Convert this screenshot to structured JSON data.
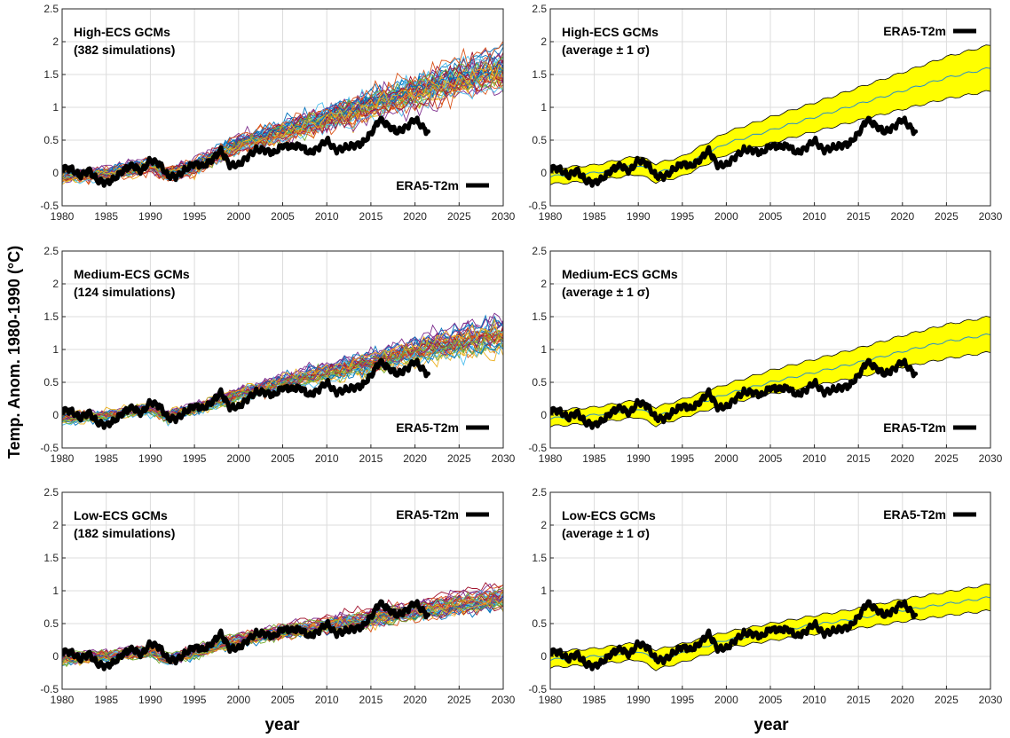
{
  "figure": {
    "ylabel": "Temp. Anom. 1980-1990 (°C)",
    "xlabel_left": "year",
    "xlabel_right": "year",
    "legend_label": "ERA5-T2m"
  },
  "colors": {
    "band": "#ffff00",
    "band_edge": "#000000",
    "mean": "#2a8fc9",
    "obs": "#000000",
    "grid": "#dcdcdc",
    "ensemble_palette": [
      "#0072bd",
      "#d95319",
      "#edb120",
      "#7e2f8e",
      "#77ac30",
      "#4dbeee",
      "#a2142f"
    ]
  },
  "chart_data": [
    {
      "type": "line",
      "panel": "high-ensemble",
      "title_line1": "High-ECS GCMs",
      "title_line2": "(382 simulations)",
      "legend_position": "bottom-right",
      "xlim": [
        1980,
        2030
      ],
      "ylim": [
        -0.5,
        2.5
      ],
      "xticks": [
        1980,
        1985,
        1990,
        1995,
        2000,
        2005,
        2010,
        2015,
        2020,
        2025,
        2030
      ],
      "yticks": [
        -0.5,
        0,
        0.5,
        1,
        1.5,
        2,
        2.5
      ],
      "ytick_labels": [
        "-0.5",
        "0",
        "0.5",
        "1",
        "1.5",
        "2",
        "2.5"
      ],
      "grid": true,
      "ensemble": {
        "n_drawn": 45,
        "mean_x": [
          1980,
          1985,
          1990,
          1992,
          1995,
          2000,
          2005,
          2010,
          2015,
          2020,
          2025,
          2030
        ],
        "mean_y": [
          -0.05,
          0.0,
          0.12,
          0.0,
          0.1,
          0.45,
          0.65,
          0.85,
          1.05,
          1.25,
          1.45,
          1.6
        ],
        "spread_x": [
          1980,
          2000,
          2030
        ],
        "spread_y": [
          0.13,
          0.18,
          0.35
        ]
      }
    },
    {
      "type": "area",
      "panel": "high-band",
      "title_line1": "High-ECS GCMs",
      "title_line2": "(average ± 1 σ)",
      "legend_position": "top-right",
      "xlim": [
        1980,
        2030
      ],
      "ylim": [
        -0.5,
        2.5
      ],
      "xticks": [
        1980,
        1985,
        1990,
        1995,
        2000,
        2005,
        2010,
        2015,
        2020,
        2025,
        2030
      ],
      "yticks": [
        -0.5,
        0,
        0.5,
        1,
        1.5,
        2,
        2.5
      ],
      "ytick_labels": [
        "-0.5",
        "0",
        "0.5",
        "1",
        "1.5",
        "2",
        "2.5"
      ],
      "grid": true,
      "band": {
        "x": [
          1980,
          1985,
          1990,
          1992,
          1995,
          2000,
          2005,
          2010,
          2015,
          2020,
          2025,
          2030
        ],
        "mean": [
          -0.05,
          0.0,
          0.12,
          0.0,
          0.1,
          0.45,
          0.65,
          0.85,
          1.05,
          1.25,
          1.45,
          1.6
        ],
        "sigma": [
          0.12,
          0.12,
          0.14,
          0.14,
          0.15,
          0.17,
          0.2,
          0.22,
          0.25,
          0.28,
          0.32,
          0.35
        ]
      }
    },
    {
      "type": "line",
      "panel": "medium-ensemble",
      "title_line1": "Medium-ECS GCMs",
      "title_line2": "(124 simulations)",
      "legend_position": "bottom-right",
      "xlim": [
        1980,
        2030
      ],
      "ylim": [
        -0.5,
        2.5
      ],
      "xticks": [
        1980,
        1985,
        1990,
        1995,
        2000,
        2005,
        2010,
        2015,
        2020,
        2025,
        2030
      ],
      "yticks": [
        -0.5,
        0,
        0.5,
        1,
        1.5,
        2,
        2.5
      ],
      "ytick_labels": [
        "-0.5",
        "0",
        "0.5",
        "1",
        "1.5",
        "2",
        "2.5"
      ],
      "grid": true,
      "ensemble": {
        "n_drawn": 40,
        "mean_x": [
          1980,
          1985,
          1990,
          1992,
          1995,
          2000,
          2005,
          2010,
          2015,
          2020,
          2025,
          2030
        ],
        "mean_y": [
          -0.05,
          0.0,
          0.1,
          -0.02,
          0.1,
          0.32,
          0.5,
          0.65,
          0.8,
          0.97,
          1.12,
          1.23
        ],
        "spread_x": [
          1980,
          2000,
          2030
        ],
        "spread_y": [
          0.12,
          0.15,
          0.28
        ]
      }
    },
    {
      "type": "area",
      "panel": "medium-band",
      "title_line1": "Medium-ECS GCMs",
      "title_line2": "(average ± 1 σ)",
      "legend_position": "bottom-right",
      "xlim": [
        1980,
        2030
      ],
      "ylim": [
        -0.5,
        2.5
      ],
      "xticks": [
        1980,
        1985,
        1990,
        1995,
        2000,
        2005,
        2010,
        2015,
        2020,
        2025,
        2030
      ],
      "yticks": [
        -0.5,
        0,
        0.5,
        1,
        1.5,
        2,
        2.5
      ],
      "ytick_labels": [
        "-0.5",
        "0",
        "0.5",
        "1",
        "1.5",
        "2",
        "2.5"
      ],
      "grid": true,
      "band": {
        "x": [
          1980,
          1985,
          1990,
          1992,
          1995,
          2000,
          2005,
          2010,
          2015,
          2020,
          2025,
          2030
        ],
        "mean": [
          -0.05,
          0.0,
          0.1,
          -0.02,
          0.1,
          0.32,
          0.5,
          0.65,
          0.8,
          0.97,
          1.12,
          1.23
        ],
        "sigma": [
          0.12,
          0.12,
          0.13,
          0.14,
          0.14,
          0.15,
          0.18,
          0.2,
          0.22,
          0.24,
          0.26,
          0.27
        ]
      }
    },
    {
      "type": "line",
      "panel": "low-ensemble",
      "title_line1": "Low-ECS GCMs",
      "title_line2": "(182 simulations)",
      "legend_position": "top-right",
      "xlim": [
        1980,
        2030
      ],
      "ylim": [
        -0.5,
        2.5
      ],
      "xticks": [
        1980,
        1985,
        1990,
        1995,
        2000,
        2005,
        2010,
        2015,
        2020,
        2025,
        2030
      ],
      "yticks": [
        -0.5,
        0,
        0.5,
        1,
        1.5,
        2,
        2.5
      ],
      "ytick_labels": [
        "-0.5",
        "0",
        "0.5",
        "1",
        "1.5",
        "2",
        "2.5"
      ],
      "grid": true,
      "ensemble": {
        "n_drawn": 40,
        "mean_x": [
          1980,
          1985,
          1990,
          1992,
          1995,
          2000,
          2005,
          2010,
          2015,
          2020,
          2025,
          2030
        ],
        "mean_y": [
          -0.05,
          0.0,
          0.08,
          -0.05,
          0.05,
          0.25,
          0.37,
          0.48,
          0.58,
          0.7,
          0.8,
          0.9
        ],
        "spread_x": [
          1980,
          2000,
          2030
        ],
        "spread_y": [
          0.12,
          0.13,
          0.2
        ]
      }
    },
    {
      "type": "area",
      "panel": "low-band",
      "title_line1": "Low-ECS GCMs",
      "title_line2": "(average ± 1 σ)",
      "legend_position": "top-right",
      "xlim": [
        1980,
        2030
      ],
      "ylim": [
        -0.5,
        2.5
      ],
      "xticks": [
        1980,
        1985,
        1990,
        1995,
        2000,
        2005,
        2010,
        2015,
        2020,
        2025,
        2030
      ],
      "yticks": [
        -0.5,
        0,
        0.5,
        1,
        1.5,
        2,
        2.5
      ],
      "ytick_labels": [
        "-0.5",
        "0",
        "0.5",
        "1",
        "1.5",
        "2",
        "2.5"
      ],
      "grid": true,
      "band": {
        "x": [
          1980,
          1985,
          1990,
          1992,
          1995,
          2000,
          2005,
          2010,
          2015,
          2020,
          2025,
          2030
        ],
        "mean": [
          -0.05,
          0.0,
          0.08,
          -0.05,
          0.05,
          0.25,
          0.37,
          0.48,
          0.58,
          0.7,
          0.8,
          0.9
        ],
        "sigma": [
          0.12,
          0.12,
          0.13,
          0.15,
          0.14,
          0.12,
          0.13,
          0.14,
          0.15,
          0.17,
          0.18,
          0.2
        ]
      }
    }
  ],
  "observations": {
    "name": "ERA5-T2m",
    "x": [
      1980,
      1981,
      1982,
      1983,
      1984,
      1985,
      1986,
      1987,
      1988,
      1989,
      1990,
      1991,
      1992,
      1993,
      1994,
      1995,
      1996,
      1997,
      1998,
      1999,
      2000,
      2001,
      2002,
      2003,
      2004,
      2005,
      2006,
      2007,
      2008,
      2009,
      2010,
      2011,
      2012,
      2013,
      2014,
      2015,
      2016,
      2017,
      2018,
      2019,
      2020,
      2021,
      2021.5
    ],
    "y": [
      0.08,
      0.07,
      -0.05,
      0.05,
      -0.12,
      -0.15,
      -0.08,
      0.05,
      0.12,
      0.02,
      0.2,
      0.15,
      -0.05,
      -0.05,
      0.05,
      0.15,
      0.1,
      0.2,
      0.35,
      0.12,
      0.12,
      0.25,
      0.35,
      0.35,
      0.3,
      0.42,
      0.4,
      0.42,
      0.3,
      0.38,
      0.5,
      0.35,
      0.38,
      0.42,
      0.45,
      0.6,
      0.82,
      0.72,
      0.62,
      0.7,
      0.82,
      0.68,
      0.62
    ]
  }
}
